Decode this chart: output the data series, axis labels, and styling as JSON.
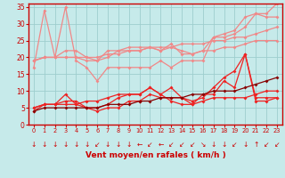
{
  "title": "",
  "xlabel": "Vent moyen/en rafales ( km/h )",
  "ylabel": "",
  "xlim": [
    -0.5,
    23.5
  ],
  "ylim": [
    0,
    36
  ],
  "yticks": [
    0,
    5,
    10,
    15,
    20,
    25,
    30,
    35
  ],
  "xticks": [
    0,
    1,
    2,
    3,
    4,
    5,
    6,
    7,
    8,
    9,
    10,
    11,
    12,
    13,
    14,
    15,
    16,
    17,
    18,
    19,
    20,
    21,
    22,
    23
  ],
  "bg_color": "#c6eaea",
  "grid_color": "#9ecece",
  "series_light": [
    {
      "x": [
        0,
        1,
        2,
        3,
        4,
        5,
        6,
        7,
        8,
        9,
        10,
        11,
        12,
        13,
        14,
        15,
        16,
        17,
        18,
        19,
        20,
        21,
        22,
        23
      ],
      "y": [
        17,
        34,
        20,
        35,
        19,
        17,
        13,
        17,
        17,
        17,
        17,
        17,
        19,
        17,
        19,
        19,
        19,
        26,
        26,
        27,
        29,
        33,
        33,
        36
      ],
      "color": "#f08888"
    },
    {
      "x": [
        0,
        1,
        2,
        3,
        4,
        5,
        6,
        7,
        8,
        9,
        10,
        11,
        12,
        13,
        14,
        15,
        16,
        17,
        18,
        19,
        20,
        21,
        22,
        23
      ],
      "y": [
        19,
        20,
        20,
        22,
        22,
        20,
        19,
        22,
        22,
        22,
        22,
        23,
        22,
        23,
        22,
        21,
        22,
        26,
        27,
        28,
        32,
        33,
        32,
        32
      ],
      "color": "#f08888"
    },
    {
      "x": [
        0,
        1,
        2,
        3,
        4,
        5,
        6,
        7,
        8,
        9,
        10,
        11,
        12,
        13,
        14,
        15,
        16,
        17,
        18,
        19,
        20,
        21,
        22,
        23
      ],
      "y": [
        19,
        20,
        20,
        20,
        20,
        19,
        19,
        20,
        22,
        23,
        23,
        23,
        22,
        24,
        21,
        21,
        22,
        22,
        23,
        23,
        24,
        25,
        25,
        25
      ],
      "color": "#f08888"
    },
    {
      "x": [
        0,
        1,
        2,
        3,
        4,
        5,
        6,
        7,
        8,
        9,
        10,
        11,
        12,
        13,
        14,
        15,
        16,
        17,
        18,
        19,
        20,
        21,
        22,
        23
      ],
      "y": [
        19,
        20,
        20,
        20,
        20,
        20,
        20,
        21,
        21,
        22,
        22,
        23,
        23,
        23,
        24,
        24,
        24,
        25,
        25,
        26,
        26,
        27,
        28,
        29
      ],
      "color": "#f08888"
    }
  ],
  "series_dark": [
    {
      "x": [
        0,
        1,
        2,
        3,
        4,
        5,
        6,
        7,
        8,
        9,
        10,
        11,
        12,
        13,
        14,
        15,
        16,
        17,
        18,
        19,
        20,
        21,
        22,
        23
      ],
      "y": [
        4,
        6,
        6,
        9,
        6,
        7,
        7,
        8,
        9,
        9,
        9,
        11,
        9,
        7,
        6,
        6,
        9,
        9,
        13,
        11,
        21,
        7,
        7,
        8
      ],
      "color": "#ee2222"
    },
    {
      "x": [
        0,
        1,
        2,
        3,
        4,
        5,
        6,
        7,
        8,
        9,
        10,
        11,
        12,
        13,
        14,
        15,
        16,
        17,
        18,
        19,
        20,
        21,
        22,
        23
      ],
      "y": [
        5,
        6,
        6,
        6,
        6,
        5,
        4,
        5,
        5,
        7,
        7,
        9,
        8,
        8,
        8,
        6,
        7,
        8,
        8,
        8,
        8,
        9,
        10,
        10
      ],
      "color": "#ee2222"
    },
    {
      "x": [
        0,
        1,
        2,
        3,
        4,
        5,
        6,
        7,
        8,
        9,
        10,
        11,
        12,
        13,
        14,
        15,
        16,
        17,
        18,
        19,
        20,
        21,
        22,
        23
      ],
      "y": [
        5,
        6,
        6,
        7,
        7,
        5,
        5,
        6,
        8,
        9,
        9,
        11,
        9,
        11,
        8,
        7,
        8,
        11,
        14,
        16,
        21,
        8,
        8,
        8
      ],
      "color": "#ee2222"
    },
    {
      "x": [
        0,
        1,
        2,
        3,
        4,
        5,
        6,
        7,
        8,
        9,
        10,
        11,
        12,
        13,
        14,
        15,
        16,
        17,
        18,
        19,
        20,
        21,
        22,
        23
      ],
      "y": [
        4,
        5,
        5,
        5,
        5,
        5,
        5,
        6,
        6,
        6,
        7,
        7,
        8,
        8,
        8,
        9,
        9,
        10,
        10,
        10,
        11,
        12,
        13,
        14
      ],
      "color": "#880000"
    }
  ],
  "arrow_list": [
    "↓",
    "↓",
    "↓",
    "↓",
    "↓",
    "↓",
    "↙",
    "↓",
    "↓",
    "↓",
    "←",
    "↙",
    "←",
    "↙",
    "↙",
    "↙",
    "↘",
    "↓",
    "↓",
    "↙",
    "↓",
    "↑",
    "↙",
    "↙"
  ]
}
